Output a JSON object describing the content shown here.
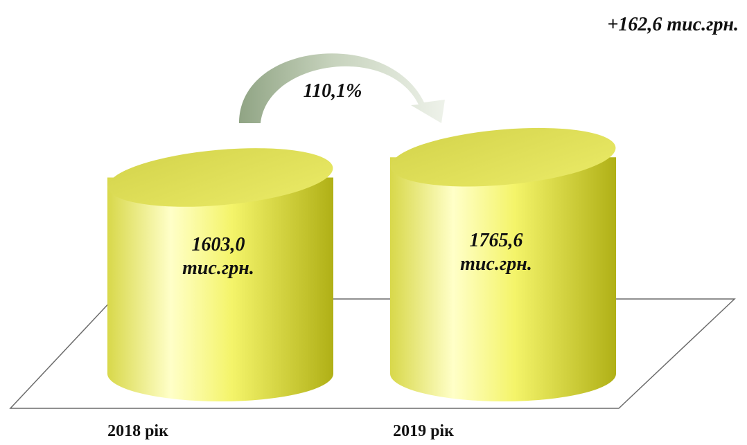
{
  "chart_data": {
    "type": "bar",
    "style": "3d-cylinder",
    "categories": [
      "2018 рік",
      "2019 рік"
    ],
    "values": [
      1603.0,
      1765.6
    ],
    "value_labels": [
      {
        "value": "1603,0",
        "unit": "тис.грн."
      },
      {
        "value": "1765,6",
        "unit": "тис.грн."
      }
    ],
    "growth_percent_label": "110,1%",
    "difference_label": "+162,6 тис.грн.",
    "title": "",
    "xlabel": "",
    "ylabel": "",
    "legend": "none",
    "grid": false
  },
  "colors": {
    "cylinder_light": "#ffffc8",
    "cylinder_main": "#f4f46a",
    "cylinder_dark": "#b8b81e",
    "cylinder_top": "#e2e25a",
    "arrow_light": "#e4ecdc",
    "arrow_dark": "#94a888",
    "floor_line": "#6b6b6b"
  }
}
